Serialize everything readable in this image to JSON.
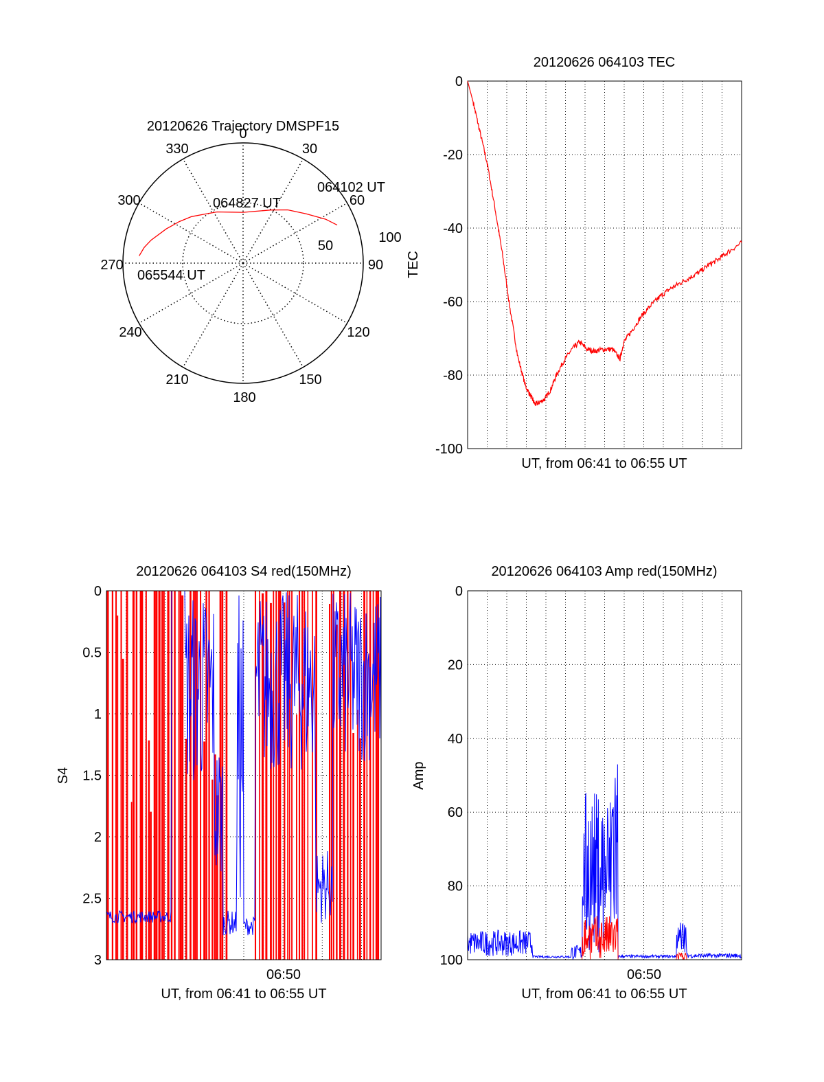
{
  "colors": {
    "red": "#ff0000",
    "blue": "#0000ff",
    "axis": "#000000"
  },
  "polar": {
    "title": "20120626 Trajectory DMSPF15",
    "angle_labels": [
      "0",
      "30",
      "60",
      "90",
      "120",
      "150",
      "180",
      "210",
      "240",
      "270",
      "300",
      "330"
    ],
    "ring_labels": [
      "50",
      "100"
    ],
    "annotations": [
      "064102 UT",
      "064827 UT",
      "065544 UT"
    ]
  },
  "chart_data": [
    {
      "type": "polar-trajectory",
      "title": "20120626 Trajectory DMSPF15",
      "angle_ticks_deg": [
        0,
        30,
        60,
        90,
        120,
        150,
        180,
        210,
        240,
        270,
        300,
        330
      ],
      "radial_ticks": [
        50,
        100
      ],
      "series": [
        {
          "color": "#ff0000",
          "points_az_el": [
            [
              68,
              14
            ],
            [
              62,
              20
            ],
            [
              52,
              30
            ],
            [
              40,
              38
            ],
            [
              28,
              45
            ],
            [
              14,
              50
            ],
            [
              0,
              52
            ],
            [
              -12,
              51
            ],
            [
              -27,
              47
            ],
            [
              -39,
              43
            ],
            [
              -48,
              38
            ],
            [
              -57,
              33
            ],
            [
              -66,
              27
            ],
            [
              -76,
              19
            ],
            [
              -81,
              15
            ],
            [
              -86,
              12
            ]
          ]
        }
      ],
      "annotations": [
        {
          "text": "064102 UT",
          "az": 66,
          "el": 15
        },
        {
          "text": "064827 UT",
          "az": 13,
          "el": 65
        },
        {
          "text": "065544 UT",
          "az": -82,
          "el": 40
        }
      ]
    },
    {
      "type": "line",
      "title": "20120626 064103 TEC",
      "xlabel": "UT, from 06:41 to 06:55 UT",
      "ylabel": "TEC",
      "xlim": [
        0,
        14.2
      ],
      "ylim": [
        -100,
        0
      ],
      "yticks": [
        "0",
        "-20",
        "-40",
        "-60",
        "-80",
        "-100"
      ],
      "grid": true,
      "series": [
        {
          "color": "#ff0000",
          "x": [
            0,
            0.3,
            0.6,
            1.0,
            1.4,
            1.8,
            2.2,
            2.6,
            3.0,
            3.3,
            3.5,
            3.7,
            4.0,
            4.3,
            4.6,
            5.0,
            5.4,
            5.8,
            6.2,
            6.6,
            7.0,
            7.5,
            7.9,
            8.1,
            8.5,
            9.0,
            9.5,
            10.0,
            10.5,
            11.0,
            11.5,
            12.0,
            12.5,
            13.0,
            13.5,
            14.2
          ],
          "y": [
            0,
            -6,
            -13,
            -22,
            -34,
            -47,
            -62,
            -75,
            -83,
            -86,
            -88,
            -87.5,
            -86.5,
            -84,
            -80,
            -76,
            -73,
            -71,
            -73,
            -73.5,
            -73,
            -73,
            -75.5,
            -71,
            -68,
            -64,
            -61,
            -58.5,
            -56.5,
            -55,
            -53.5,
            -52,
            -50,
            -48.5,
            -46.5,
            -44
          ]
        }
      ]
    },
    {
      "type": "line",
      "title": "20120626 064103 S4 red(150MHz)",
      "xlabel": "UT, from 06:41 to 06:55 UT",
      "ylabel": "S4",
      "xlim": [
        0,
        14.2
      ],
      "ylim": [
        0,
        3
      ],
      "yticks": [
        "0",
        "0.5",
        "1",
        "1.5",
        "2",
        "2.5",
        "3"
      ],
      "xtick_label": "06:50",
      "grid": true,
      "series": [
        {
          "color": "#ff0000",
          "note": "saturated spikes to 3 on most of the interval"
        },
        {
          "color": "#0000ff"
        }
      ]
    },
    {
      "type": "line",
      "title": "20120626 064103 Amp red(150MHz)",
      "xlabel": "UT, from 06:41 to 06:55 UT",
      "ylabel": "Amp",
      "xlim": [
        0,
        14.2
      ],
      "ylim": [
        0,
        100
      ],
      "yticks": [
        "0",
        "20",
        "40",
        "60",
        "80",
        "100"
      ],
      "xtick_label": "06:50",
      "grid": true,
      "series": [
        {
          "color": "#0000ff"
        },
        {
          "color": "#ff0000"
        }
      ]
    }
  ]
}
